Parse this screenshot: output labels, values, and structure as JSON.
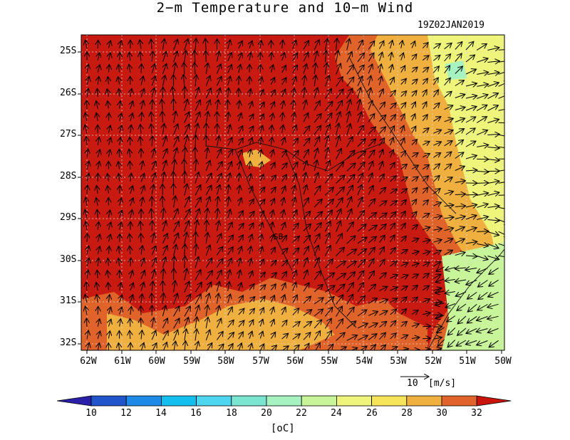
{
  "title": "2−m Temperature and 10−m Wind",
  "timestamp": "19Z02JAN2019",
  "station_label": "SB",
  "y_axis_labels": [
    "25S",
    "26S",
    "27S",
    "28S",
    "29S",
    "30S",
    "31S",
    "32S"
  ],
  "x_axis_labels": [
    "62W",
    "61W",
    "60W",
    "59W",
    "58W",
    "57W",
    "56W",
    "55W",
    "54W",
    "53W",
    "52W",
    "51W",
    "50W"
  ],
  "reference_vector": {
    "value": "10",
    "unit": "[m/s]"
  },
  "colorbar": {
    "unit": "[oC]",
    "ticks": [
      "10",
      "12",
      "14",
      "16",
      "18",
      "20",
      "22",
      "24",
      "26",
      "28",
      "30",
      "32"
    ],
    "colors": [
      "#2a1fa8",
      "#1f55c8",
      "#1c8ae6",
      "#14bff0",
      "#4ed6f0",
      "#7ae6d2",
      "#a6f2c0",
      "#c8f49a",
      "#eef57a",
      "#f6e55a",
      "#f0b040",
      "#e0642a",
      "#c8140c"
    ]
  },
  "map_colors": {
    "hot": "#c81a10",
    "warm": "#e0642a",
    "orange": "#f0b040",
    "yellow": "#f6e55a",
    "pale": "#eef57a",
    "cool": "#c8f49a",
    "cyan": "#a6f2c0"
  }
}
